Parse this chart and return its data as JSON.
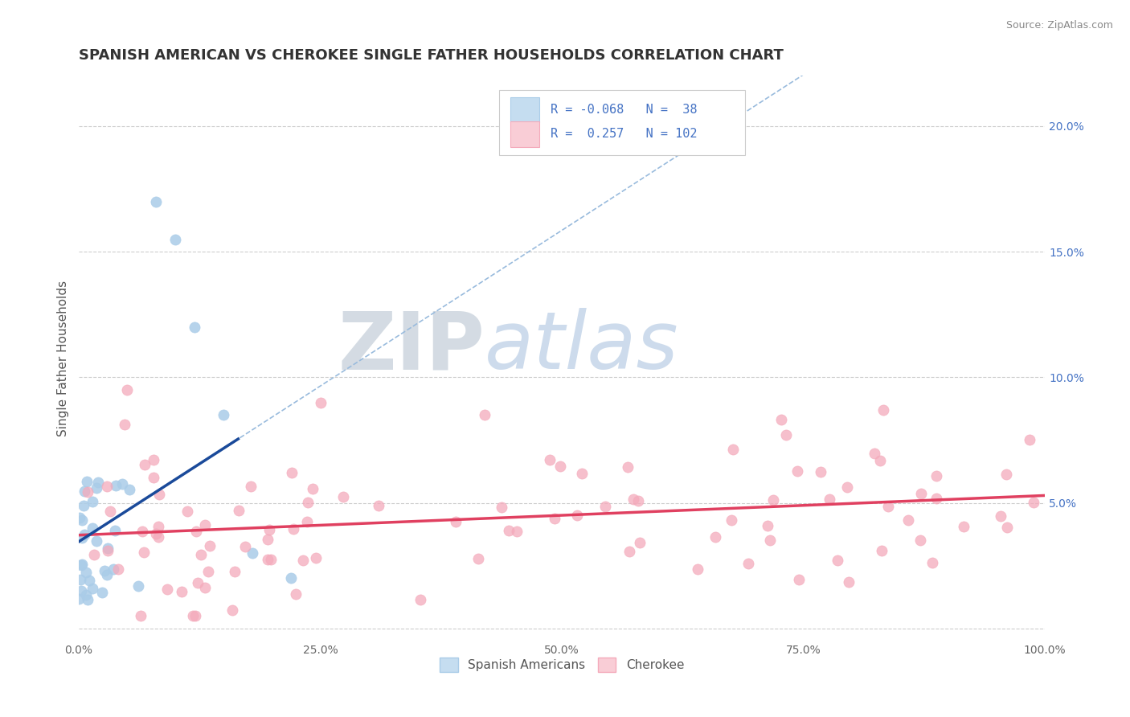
{
  "title": "SPANISH AMERICAN VS CHEROKEE SINGLE FATHER HOUSEHOLDS CORRELATION CHART",
  "source": "Source: ZipAtlas.com",
  "ylabel": "Single Father Households",
  "xlim": [
    0.0,
    1.0
  ],
  "ylim": [
    -0.005,
    0.22
  ],
  "watermark_zip": "ZIP",
  "watermark_atlas": "atlas",
  "title_fontsize": 13,
  "axis_label_fontsize": 11,
  "tick_fontsize": 10,
  "background_color": "#ffffff",
  "plot_bg_color": "#ffffff",
  "grid_color": "#c8c8c8",
  "blue_dot_color": "#aacce8",
  "blue_dot_edge": "#aacce8",
  "pink_dot_color": "#f4aabb",
  "pink_dot_edge": "#f4aabb",
  "blue_line_color": "#1a4a9a",
  "pink_line_color": "#e04060",
  "dashed_line_color": "#99bbdd",
  "legend_blue_face": "#c5ddf0",
  "legend_blue_edge": "#aacce8",
  "legend_pink_face": "#f9cdd6",
  "legend_pink_edge": "#f4aabb",
  "right_tick_color": "#4472c4"
}
